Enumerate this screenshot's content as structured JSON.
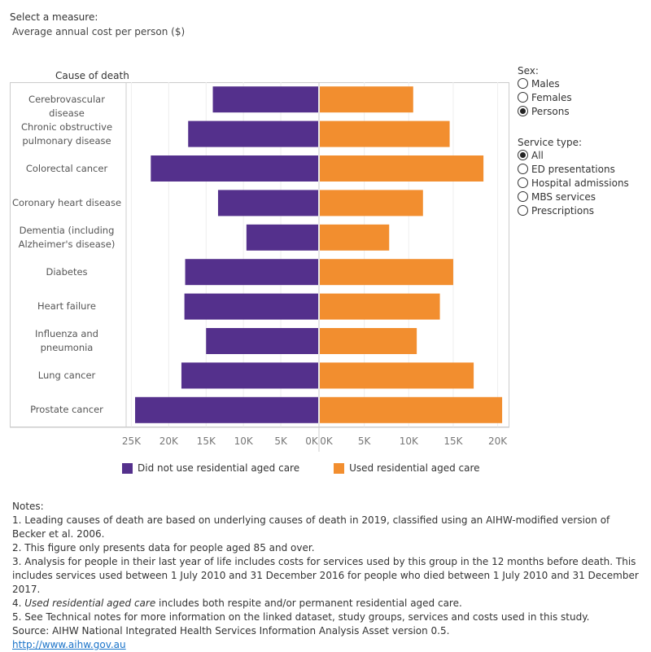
{
  "header": {
    "select_label": "Select a measure:",
    "measure_value": "Average annual cost per person ($)"
  },
  "filters": {
    "sex_title": "Sex:",
    "sex_options": [
      "Males",
      "Females",
      "Persons"
    ],
    "sex_selected": 2,
    "service_title": "Service type:",
    "service_options": [
      "All",
      "ED presentations",
      "Hospital admissions",
      "MBS services",
      "Prescriptions"
    ],
    "service_selected": 0
  },
  "chart_data": {
    "type": "bar",
    "orientation": "horizontal-butterfly",
    "ylabel": "Cause of death",
    "categories": [
      "Cerebrovascular disease",
      "Chronic obstructive pulmonary disease",
      "Colorectal cancer",
      "Coronary heart disease",
      "Dementia (including Alzheimer's disease)",
      "Diabetes",
      "Heart failure",
      "Influenza and pneumonia",
      "Lung cancer",
      "Prostate cancer"
    ],
    "category_lines": [
      [
        "Cerebrovascular disease"
      ],
      [
        "Chronic obstructive",
        "pulmonary disease"
      ],
      [
        "Colorectal cancer"
      ],
      [
        "Coronary heart disease"
      ],
      [
        "Dementia (including",
        "Alzheimer's disease)"
      ],
      [
        "Diabetes"
      ],
      [
        "Heart failure"
      ],
      [
        "Influenza and",
        "pneumonia"
      ],
      [
        "Lung cancer"
      ],
      [
        "Prostate cancer"
      ]
    ],
    "series": [
      {
        "name": "Did not use residential aged care",
        "color": "#54308C",
        "values": [
          14100,
          17400,
          22400,
          13400,
          9600,
          17800,
          17900,
          15000,
          18300,
          24500
        ]
      },
      {
        "name": "Used residential aged care",
        "color": "#F28E2F",
        "values": [
          10500,
          14600,
          18400,
          11600,
          7800,
          15000,
          13500,
          10900,
          17300,
          20500
        ]
      }
    ],
    "left_ticks": [
      "25K",
      "20K",
      "15K",
      "10K",
      "5K",
      "0K"
    ],
    "right_ticks": [
      "0K",
      "5K",
      "10K",
      "15K",
      "20K"
    ],
    "left_xlim": [
      0,
      25700
    ],
    "right_xlim": [
      0,
      21500
    ],
    "grid": true,
    "legend": "bottom"
  },
  "notes": {
    "title": "Notes:",
    "items": [
      "1.  Leading causes of death are based on underlying causes of death in 2019, classified using an AIHW-modified version of Becker et al. 2006.",
      "2.  This figure only presents data for people aged 85 and over.",
      "3.  Analysis for people in their last year of life includes costs for services used by this group in the 12 months before death. This includes services used between 1 July 2010 and 31 December 2016 for people who died between 1 July 2010 and 31 December 2017."
    ],
    "item4_prefix": "4.  ",
    "item4_em": "Used residential aged care",
    "item4_rest": " includes both respite and/or permanent residential aged care.",
    "item5": "5.  See Technical notes for more information on the linked dataset, study groups, services and costs used in this study.",
    "source": "Source: AIHW National Integrated Health Services Information Analysis Asset version 0.5.",
    "link": "http://www.aihw.gov.au"
  }
}
